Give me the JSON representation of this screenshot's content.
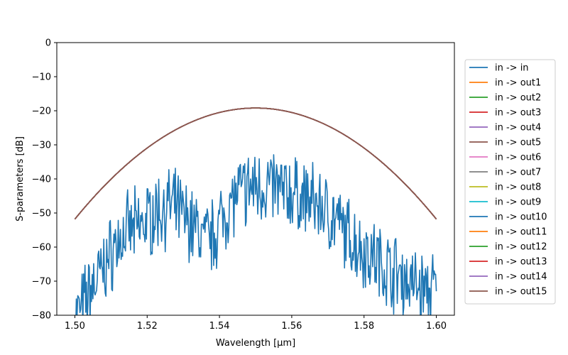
{
  "chart_data": {
    "type": "line",
    "xlabel": "Wavelength [μm]",
    "ylabel": "S-parameters [dB]",
    "xlim": [
      1.495,
      1.605
    ],
    "ylim": [
      -80,
      0
    ],
    "xticks": [
      "1.50",
      "1.52",
      "1.54",
      "1.56",
      "1.58",
      "1.60"
    ],
    "yticks": [
      "0",
      "−10",
      "−20",
      "−30",
      "−40",
      "−50",
      "−60",
      "−70",
      "−80"
    ],
    "grid": false,
    "legend_position": "right, outside plot",
    "series": [
      {
        "name": "in -> in",
        "color": "#1f77b4",
        "kind": "noisy",
        "x": [
          1.5,
          1.502,
          1.504,
          1.506,
          1.508,
          1.51,
          1.512,
          1.514,
          1.516,
          1.518,
          1.52,
          1.522,
          1.524,
          1.526,
          1.528,
          1.53,
          1.532,
          1.534,
          1.536,
          1.538,
          1.54,
          1.542,
          1.544,
          1.546,
          1.548,
          1.55,
          1.552,
          1.554,
          1.556,
          1.558,
          1.56,
          1.562,
          1.564,
          1.566,
          1.568,
          1.57,
          1.572,
          1.574,
          1.576,
          1.578,
          1.58,
          1.582,
          1.584,
          1.586,
          1.588,
          1.59,
          1.592,
          1.594,
          1.596,
          1.598,
          1.6
        ],
        "y": [
          -80,
          -78,
          -73,
          -70,
          -66,
          -62,
          -58,
          -56,
          -55,
          -54,
          -52,
          -50,
          -49,
          -48,
          -49,
          -51,
          -53,
          -55,
          -58,
          -57,
          -53,
          -49,
          -46,
          -44,
          -43,
          -42,
          -42,
          -42,
          -43,
          -44,
          -44,
          -45,
          -46,
          -47,
          -48,
          -50,
          -52,
          -55,
          -57,
          -59,
          -61,
          -62,
          -64,
          -66,
          -67,
          -68,
          -70,
          -71,
          -72,
          -73,
          -72
        ]
      },
      {
        "name": "in -> out1",
        "color": "#ff7f0e",
        "kind": "parabola",
        "x": [
          1.5,
          1.55,
          1.6
        ],
        "y": [
          -51.8,
          -19.2,
          -51.8
        ]
      },
      {
        "name": "in -> out2",
        "color": "#2ca02c",
        "kind": "parabola",
        "x": [
          1.5,
          1.55,
          1.6
        ],
        "y": [
          -51.8,
          -19.2,
          -51.8
        ]
      },
      {
        "name": "in -> out3",
        "color": "#d62728",
        "kind": "parabola",
        "x": [
          1.5,
          1.55,
          1.6
        ],
        "y": [
          -51.8,
          -19.2,
          -51.8
        ]
      },
      {
        "name": "in -> out4",
        "color": "#9467bd",
        "kind": "parabola",
        "x": [
          1.5,
          1.55,
          1.6
        ],
        "y": [
          -51.8,
          -19.2,
          -51.8
        ]
      },
      {
        "name": "in -> out5",
        "color": "#8c564b",
        "kind": "parabola",
        "x": [
          1.5,
          1.55,
          1.6
        ],
        "y": [
          -51.8,
          -19.2,
          -51.8
        ]
      },
      {
        "name": "in -> out6",
        "color": "#e377c2",
        "kind": "parabola",
        "x": [
          1.5,
          1.55,
          1.6
        ],
        "y": [
          -51.8,
          -19.2,
          -51.8
        ]
      },
      {
        "name": "in -> out7",
        "color": "#7f7f7f",
        "kind": "parabola",
        "x": [
          1.5,
          1.55,
          1.6
        ],
        "y": [
          -51.8,
          -19.2,
          -51.8
        ]
      },
      {
        "name": "in -> out8",
        "color": "#bcbd22",
        "kind": "parabola",
        "x": [
          1.5,
          1.55,
          1.6
        ],
        "y": [
          -51.8,
          -19.2,
          -51.8
        ]
      },
      {
        "name": "in -> out9",
        "color": "#17becf",
        "kind": "parabola",
        "x": [
          1.5,
          1.55,
          1.6
        ],
        "y": [
          -51.8,
          -19.2,
          -51.8
        ]
      },
      {
        "name": "in -> out10",
        "color": "#1f77b4",
        "kind": "parabola",
        "x": [
          1.5,
          1.55,
          1.6
        ],
        "y": [
          -51.8,
          -19.2,
          -51.8
        ]
      },
      {
        "name": "in -> out11",
        "color": "#ff7f0e",
        "kind": "parabola",
        "x": [
          1.5,
          1.55,
          1.6
        ],
        "y": [
          -51.8,
          -19.2,
          -51.8
        ]
      },
      {
        "name": "in -> out12",
        "color": "#2ca02c",
        "kind": "parabola",
        "x": [
          1.5,
          1.55,
          1.6
        ],
        "y": [
          -51.8,
          -19.2,
          -51.8
        ]
      },
      {
        "name": "in -> out13",
        "color": "#d62728",
        "kind": "parabola",
        "x": [
          1.5,
          1.55,
          1.6
        ],
        "y": [
          -51.8,
          -19.2,
          -51.8
        ]
      },
      {
        "name": "in -> out14",
        "color": "#9467bd",
        "kind": "parabola",
        "x": [
          1.5,
          1.55,
          1.6
        ],
        "y": [
          -51.8,
          -19.2,
          -51.8
        ]
      },
      {
        "name": "in -> out15",
        "color": "#8c564b",
        "kind": "parabola",
        "x": [
          1.5,
          1.55,
          1.6
        ],
        "y": [
          -51.8,
          -19.2,
          -51.8
        ]
      }
    ]
  }
}
